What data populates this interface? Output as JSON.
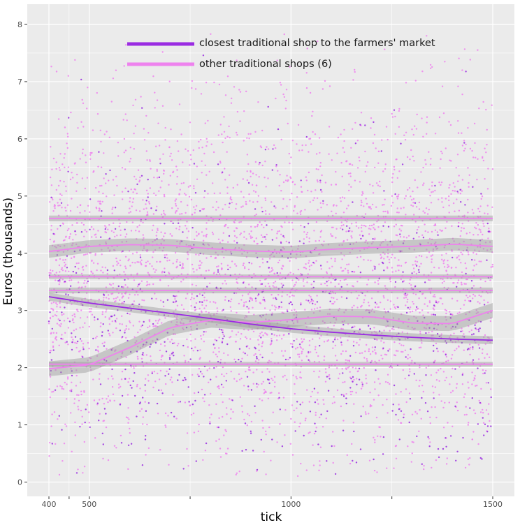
{
  "chart_data": {
    "type": "scatter",
    "xlabel": "tick",
    "ylabel": "Euros (thousands)",
    "xlim": [
      350,
      1510
    ],
    "ylim": [
      -0.25,
      8.35
    ],
    "x_ticks": [
      400,
      500,
      1000,
      1500
    ],
    "x_tick_labels": [
      "400",
      "500",
      "1000",
      "1500"
    ],
    "x_minor_ticks": [
      450,
      750,
      1250
    ],
    "y_ticks": [
      0,
      1,
      2,
      3,
      4,
      5,
      6,
      7,
      8
    ],
    "y_tick_labels": [
      "0",
      "1",
      "2",
      "3",
      "4",
      "5",
      "6",
      "7",
      "8"
    ],
    "grid": true,
    "legend_position": "top",
    "colors": {
      "panel_background": "#ebebeb",
      "grid": "#ffffff",
      "closest_shop": "#9a2be2",
      "other_shops": "#ee82ee",
      "ribbon": "#999999"
    },
    "series": [
      {
        "name": "closest traditional shop to the farmers' market",
        "color": "#9a2be2",
        "smooth": {
          "x": [
            400,
            500,
            600,
            700,
            800,
            900,
            1000,
            1100,
            1200,
            1300,
            1400,
            1500
          ],
          "y": [
            3.24,
            3.13,
            3.04,
            2.95,
            2.86,
            2.76,
            2.68,
            2.62,
            2.57,
            2.53,
            2.5,
            2.48
          ],
          "band": 0.07
        },
        "points_summary": {
          "count": 700,
          "x_range": [
            400,
            1500
          ],
          "y_mean": 2.75,
          "y_sd": 1.35
        }
      },
      {
        "name": "other traditional shops (6)",
        "color": "#ee82ee",
        "points_summary": {
          "count": 3500,
          "x_range": [
            400,
            1500
          ],
          "y_mean": 3.5,
          "y_sd": 1.55
        },
        "smooth_lines": [
          {
            "x": [
              400,
              1500
            ],
            "y": [
              4.61,
              4.61
            ],
            "band": 0.05
          },
          {
            "x": [
              400,
              500,
              600,
              700,
              800,
              900,
              1000,
              1100,
              1200,
              1300,
              1400,
              1500
            ],
            "y": [
              4.03,
              4.12,
              4.15,
              4.14,
              4.08,
              4.04,
              4.02,
              4.07,
              4.1,
              4.12,
              4.16,
              4.12
            ],
            "band": 0.11
          },
          {
            "x": [
              400,
              1500
            ],
            "y": [
              3.59,
              3.59
            ],
            "band": 0.04
          },
          {
            "x": [
              400,
              1500
            ],
            "y": [
              3.35,
              3.35
            ],
            "band": 0.05
          },
          {
            "x": [
              400,
              500,
              600,
              700,
              800,
              900,
              1000,
              1100,
              1200,
              1300,
              1400,
              1500
            ],
            "y": [
              1.98,
              2.05,
              2.35,
              2.7,
              2.83,
              2.79,
              2.84,
              2.9,
              2.89,
              2.78,
              2.77,
              3.0
            ],
            "band": 0.13
          },
          {
            "x": [
              400,
              1500
            ],
            "y": [
              2.06,
              2.06
            ],
            "band": 0.04
          }
        ]
      }
    ]
  }
}
